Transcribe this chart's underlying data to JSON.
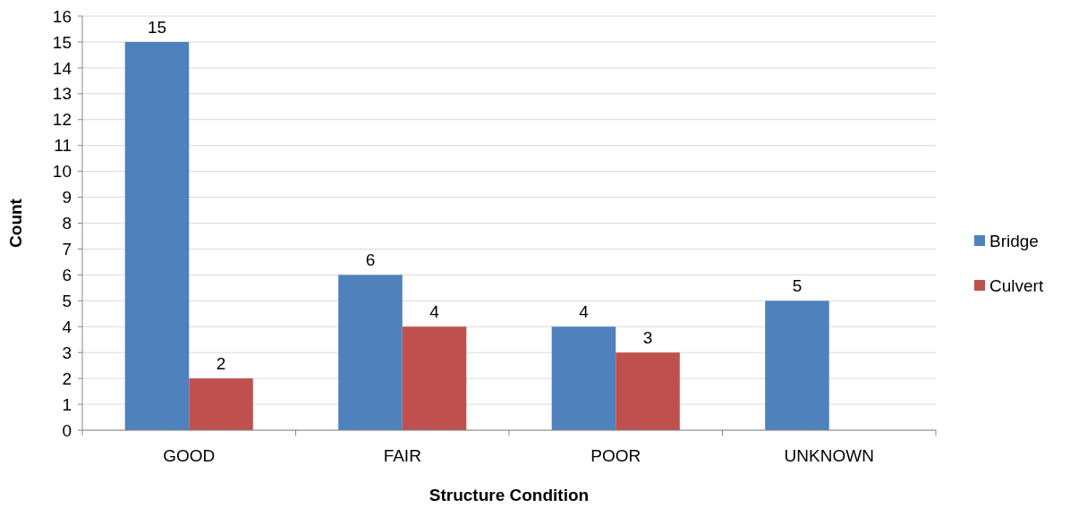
{
  "chart_data": {
    "type": "bar",
    "xlabel": "Structure Condition",
    "ylabel": "Count",
    "categories": [
      "GOOD",
      "FAIR",
      "POOR",
      "UNKNOWN"
    ],
    "series": [
      {
        "name": "Bridge",
        "color": "#4f81bd",
        "values": [
          15,
          6,
          4,
          5
        ]
      },
      {
        "name": "Culvert",
        "color": "#c0504d",
        "values": [
          2,
          4,
          3,
          null
        ]
      }
    ],
    "ylim": [
      0,
      16
    ],
    "yticks": [
      0,
      1,
      2,
      3,
      4,
      5,
      6,
      7,
      8,
      9,
      10,
      11,
      12,
      13,
      14,
      15,
      16
    ],
    "grid": "y",
    "legend": "right",
    "data_labels": true
  }
}
